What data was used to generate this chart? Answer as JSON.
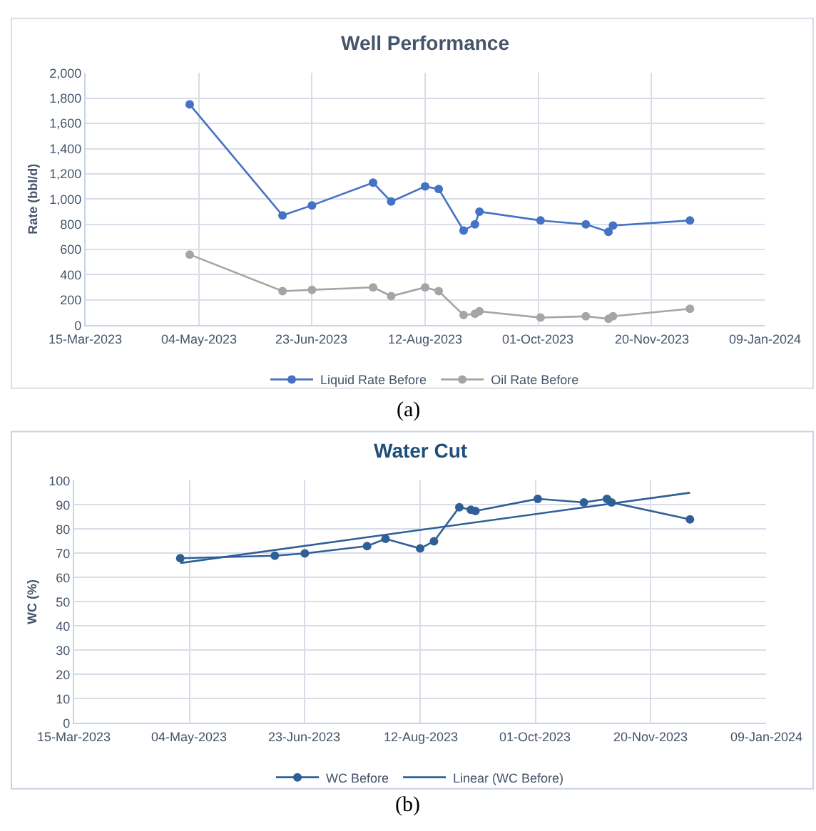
{
  "chart_data": [
    {
      "type": "line",
      "title": "Well Performance",
      "ylabel": "Rate (bbl/d)",
      "x": [
        "2023-04-30",
        "2023-06-10",
        "2023-06-23",
        "2023-07-20",
        "2023-07-28",
        "2023-08-12",
        "2023-08-18",
        "2023-08-29",
        "2023-09-03",
        "2023-09-05",
        "2023-10-02",
        "2023-10-22",
        "2023-11-01",
        "2023-11-03",
        "2023-12-07"
      ],
      "series": [
        {
          "name": "Liquid Rate Before",
          "color": "#4472c4",
          "values": [
            1750,
            870,
            950,
            1130,
            980,
            1100,
            1080,
            750,
            800,
            900,
            830,
            800,
            740,
            790,
            830
          ]
        },
        {
          "name": "Oil Rate Before",
          "color": "#a5a5a5",
          "values": [
            560,
            270,
            280,
            300,
            230,
            300,
            270,
            80,
            90,
            110,
            60,
            70,
            50,
            70,
            130
          ]
        }
      ],
      "xlim": [
        "2023-03-15",
        "2024-01-09"
      ],
      "xticks": [
        {
          "value": "2023-03-15",
          "label": "15-Mar-2023"
        },
        {
          "value": "2023-05-04",
          "label": "04-May-2023"
        },
        {
          "value": "2023-06-23",
          "label": "23-Jun-2023"
        },
        {
          "value": "2023-08-12",
          "label": "12-Aug-2023"
        },
        {
          "value": "2023-10-01",
          "label": "01-Oct-2023"
        },
        {
          "value": "2023-11-20",
          "label": "20-Nov-2023"
        },
        {
          "value": "2024-01-09",
          "label": "09-Jan-2024"
        }
      ],
      "ylim": [
        0,
        2000
      ],
      "yticks": [
        {
          "value": 0,
          "label": "0"
        },
        {
          "value": 200,
          "label": "200"
        },
        {
          "value": 400,
          "label": "400"
        },
        {
          "value": 600,
          "label": "600"
        },
        {
          "value": 800,
          "label": "800"
        },
        {
          "value": 1000,
          "label": "1,000"
        },
        {
          "value": 1200,
          "label": "1,200"
        },
        {
          "value": 1400,
          "label": "1,400"
        },
        {
          "value": 1600,
          "label": "1,600"
        },
        {
          "value": 1800,
          "label": "1,800"
        },
        {
          "value": 2000,
          "label": "2,000"
        }
      ],
      "grid": true,
      "legend": "bottom",
      "marker": "circle",
      "line_style": "solid",
      "annotations": [
        "(a)"
      ]
    },
    {
      "type": "line",
      "title": "Water Cut",
      "ylabel": "WC (%)",
      "x": [
        "2023-04-30",
        "2023-06-10",
        "2023-06-23",
        "2023-07-20",
        "2023-07-28",
        "2023-08-12",
        "2023-08-18",
        "2023-08-29",
        "2023-09-03",
        "2023-09-05",
        "2023-10-02",
        "2023-10-22",
        "2023-11-01",
        "2023-11-03",
        "2023-12-07"
      ],
      "series": [
        {
          "name": "WC Before",
          "color": "#2e5f96",
          "values": [
            68,
            69,
            70,
            73,
            76,
            72,
            75,
            89,
            88,
            87.5,
            92.5,
            91,
            92.5,
            91,
            84
          ]
        },
        {
          "name": "Linear (WC Before)",
          "color": "#2e5f96",
          "type": "line",
          "marker": "none",
          "x": [
            "2023-04-30",
            "2023-12-07"
          ],
          "values": [
            66,
            95
          ]
        }
      ],
      "xlim": [
        "2023-03-15",
        "2024-01-09"
      ],
      "xticks": [
        {
          "value": "2023-03-15",
          "label": "15-Mar-2023"
        },
        {
          "value": "2023-05-04",
          "label": "04-May-2023"
        },
        {
          "value": "2023-06-23",
          "label": "23-Jun-2023"
        },
        {
          "value": "2023-08-12",
          "label": "12-Aug-2023"
        },
        {
          "value": "2023-10-01",
          "label": "01-Oct-2023"
        },
        {
          "value": "2023-11-20",
          "label": "20-Nov-2023"
        },
        {
          "value": "2024-01-09",
          "label": "09-Jan-2024"
        }
      ],
      "ylim": [
        0,
        100
      ],
      "yticks": [
        0,
        10,
        20,
        30,
        40,
        50,
        60,
        70,
        80,
        90,
        100
      ],
      "grid": true,
      "legend": "bottom",
      "marker": "circle",
      "line_style": "solid",
      "annotations": [
        "(b)"
      ]
    }
  ]
}
